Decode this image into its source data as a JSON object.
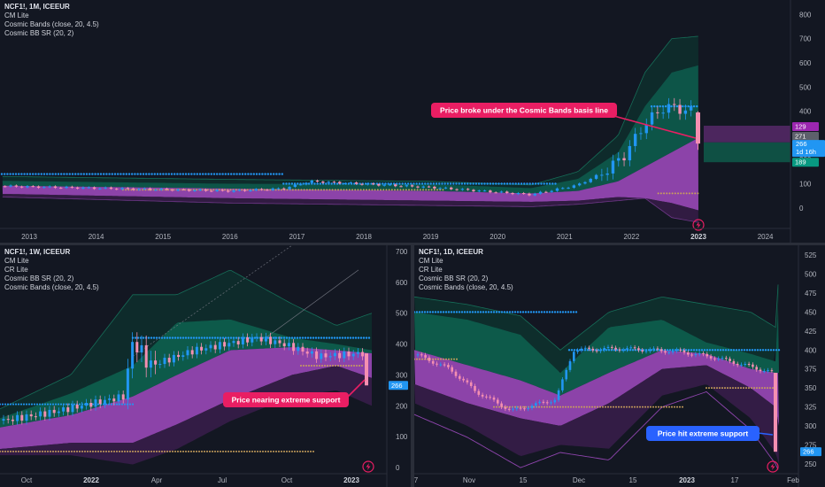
{
  "panels": [
    {
      "symbol": "NCF1!, 1M, ICEEUR",
      "indicators": [
        "CM Lite",
        "Cosmic Bands (close, 20, 4.5)",
        "Cosmic BB SR (20, 2)"
      ],
      "callout": "Price broke under the Cosmic Bands basis line",
      "price_tags": [
        {
          "text": "129",
          "color": "#9c27b0"
        },
        {
          "text": "271",
          "color": "#5d606b"
        },
        {
          "text": "266",
          "color": "#089981"
        },
        {
          "text": "1d 16h",
          "color": "#2196f3"
        },
        {
          "text": "189",
          "color": "#089981"
        }
      ]
    },
    {
      "symbol": "NCF1!, 1W, ICEEUR",
      "indicators": [
        "CM Lite",
        "CR Lite",
        "Cosmic BB SR (20, 2)",
        "Cosmic Bands (close, 20, 4.5)"
      ],
      "callout": "Price nearing extreme support",
      "price_tags": [
        {
          "text": "266",
          "color": "#2196f3"
        }
      ]
    },
    {
      "symbol": "NCF1!, 1D, ICEEUR",
      "indicators": [
        "CM Lite",
        "CR Lite",
        "Cosmic BB SR (20, 2)",
        "Cosmic Bands (close, 20, 4.5)"
      ],
      "callout": "Price hit extreme support",
      "price_tags": [
        {
          "text": "266",
          "color": "#2196f3"
        }
      ]
    }
  ],
  "colors": {
    "background": "#131722",
    "up": "#2196f3",
    "down": "#f48fb1",
    "band_purple": "#9c27b0",
    "band_green": "#089981",
    "callout_red": "#e91e63",
    "callout_blue": "#2962ff",
    "support_dots": "#c9a05c"
  },
  "chart_data": [
    {
      "type": "candlestick",
      "title": "NCF1!, 1M, ICEEUR",
      "x_ticks": [
        "2013",
        "2014",
        "2015",
        "2016",
        "2017",
        "2018",
        "2019",
        "2020",
        "2021",
        "2022",
        "2023",
        "2024"
      ],
      "y_ticks": [
        0,
        100,
        200,
        300,
        400,
        500,
        600,
        700,
        800
      ],
      "ylim": [
        -85,
        860
      ],
      "series": [
        {
          "name": "close",
          "x": [
            2013,
            2014,
            2015,
            2016,
            2016.8,
            2017,
            2018,
            2019,
            2020,
            2020.6,
            2021,
            2021.4,
            2021.7,
            2022.0,
            2022.3,
            2022.5,
            2022.8,
            2023.0
          ],
          "values": [
            88,
            84,
            75,
            68,
            70,
            105,
            95,
            82,
            60,
            55,
            90,
            140,
            180,
            250,
            420,
            400,
            410,
            266
          ]
        }
      ]
    },
    {
      "type": "candlestick",
      "title": "NCF1!, 1W, ICEEUR",
      "x_ticks": [
        "Oct",
        "2022",
        "Apr",
        "Jul",
        "Oct",
        "2023"
      ],
      "y_ticks": [
        0,
        100,
        200,
        300,
        400,
        500,
        600,
        700
      ],
      "ylim": [
        -20,
        720
      ],
      "series": [
        {
          "name": "close",
          "x": [
            0,
            5,
            10,
            15,
            20,
            25,
            30,
            35,
            40,
            45,
            50,
            55,
            60,
            65,
            70
          ],
          "values": [
            140,
            175,
            190,
            210,
            230,
            420,
            330,
            350,
            380,
            400,
            430,
            410,
            390,
            380,
            266
          ]
        }
      ]
    },
    {
      "type": "candlestick",
      "title": "NCF1!, 1D, ICEEUR",
      "x_ticks": [
        "7",
        "Nov",
        "15",
        "Dec",
        "15",
        "2023",
        "17",
        "Feb"
      ],
      "y_ticks": [
        250,
        275,
        300,
        325,
        350,
        375,
        400,
        425,
        450,
        475,
        500,
        525
      ],
      "ylim": [
        237,
        538
      ],
      "series": [
        {
          "name": "close",
          "x": [
            0,
            10,
            20,
            30,
            40,
            50,
            60,
            70,
            80,
            90,
            100
          ],
          "values": [
            395,
            375,
            340,
            325,
            375,
            398,
            400,
            385,
            370,
            355,
            266
          ]
        }
      ]
    }
  ]
}
